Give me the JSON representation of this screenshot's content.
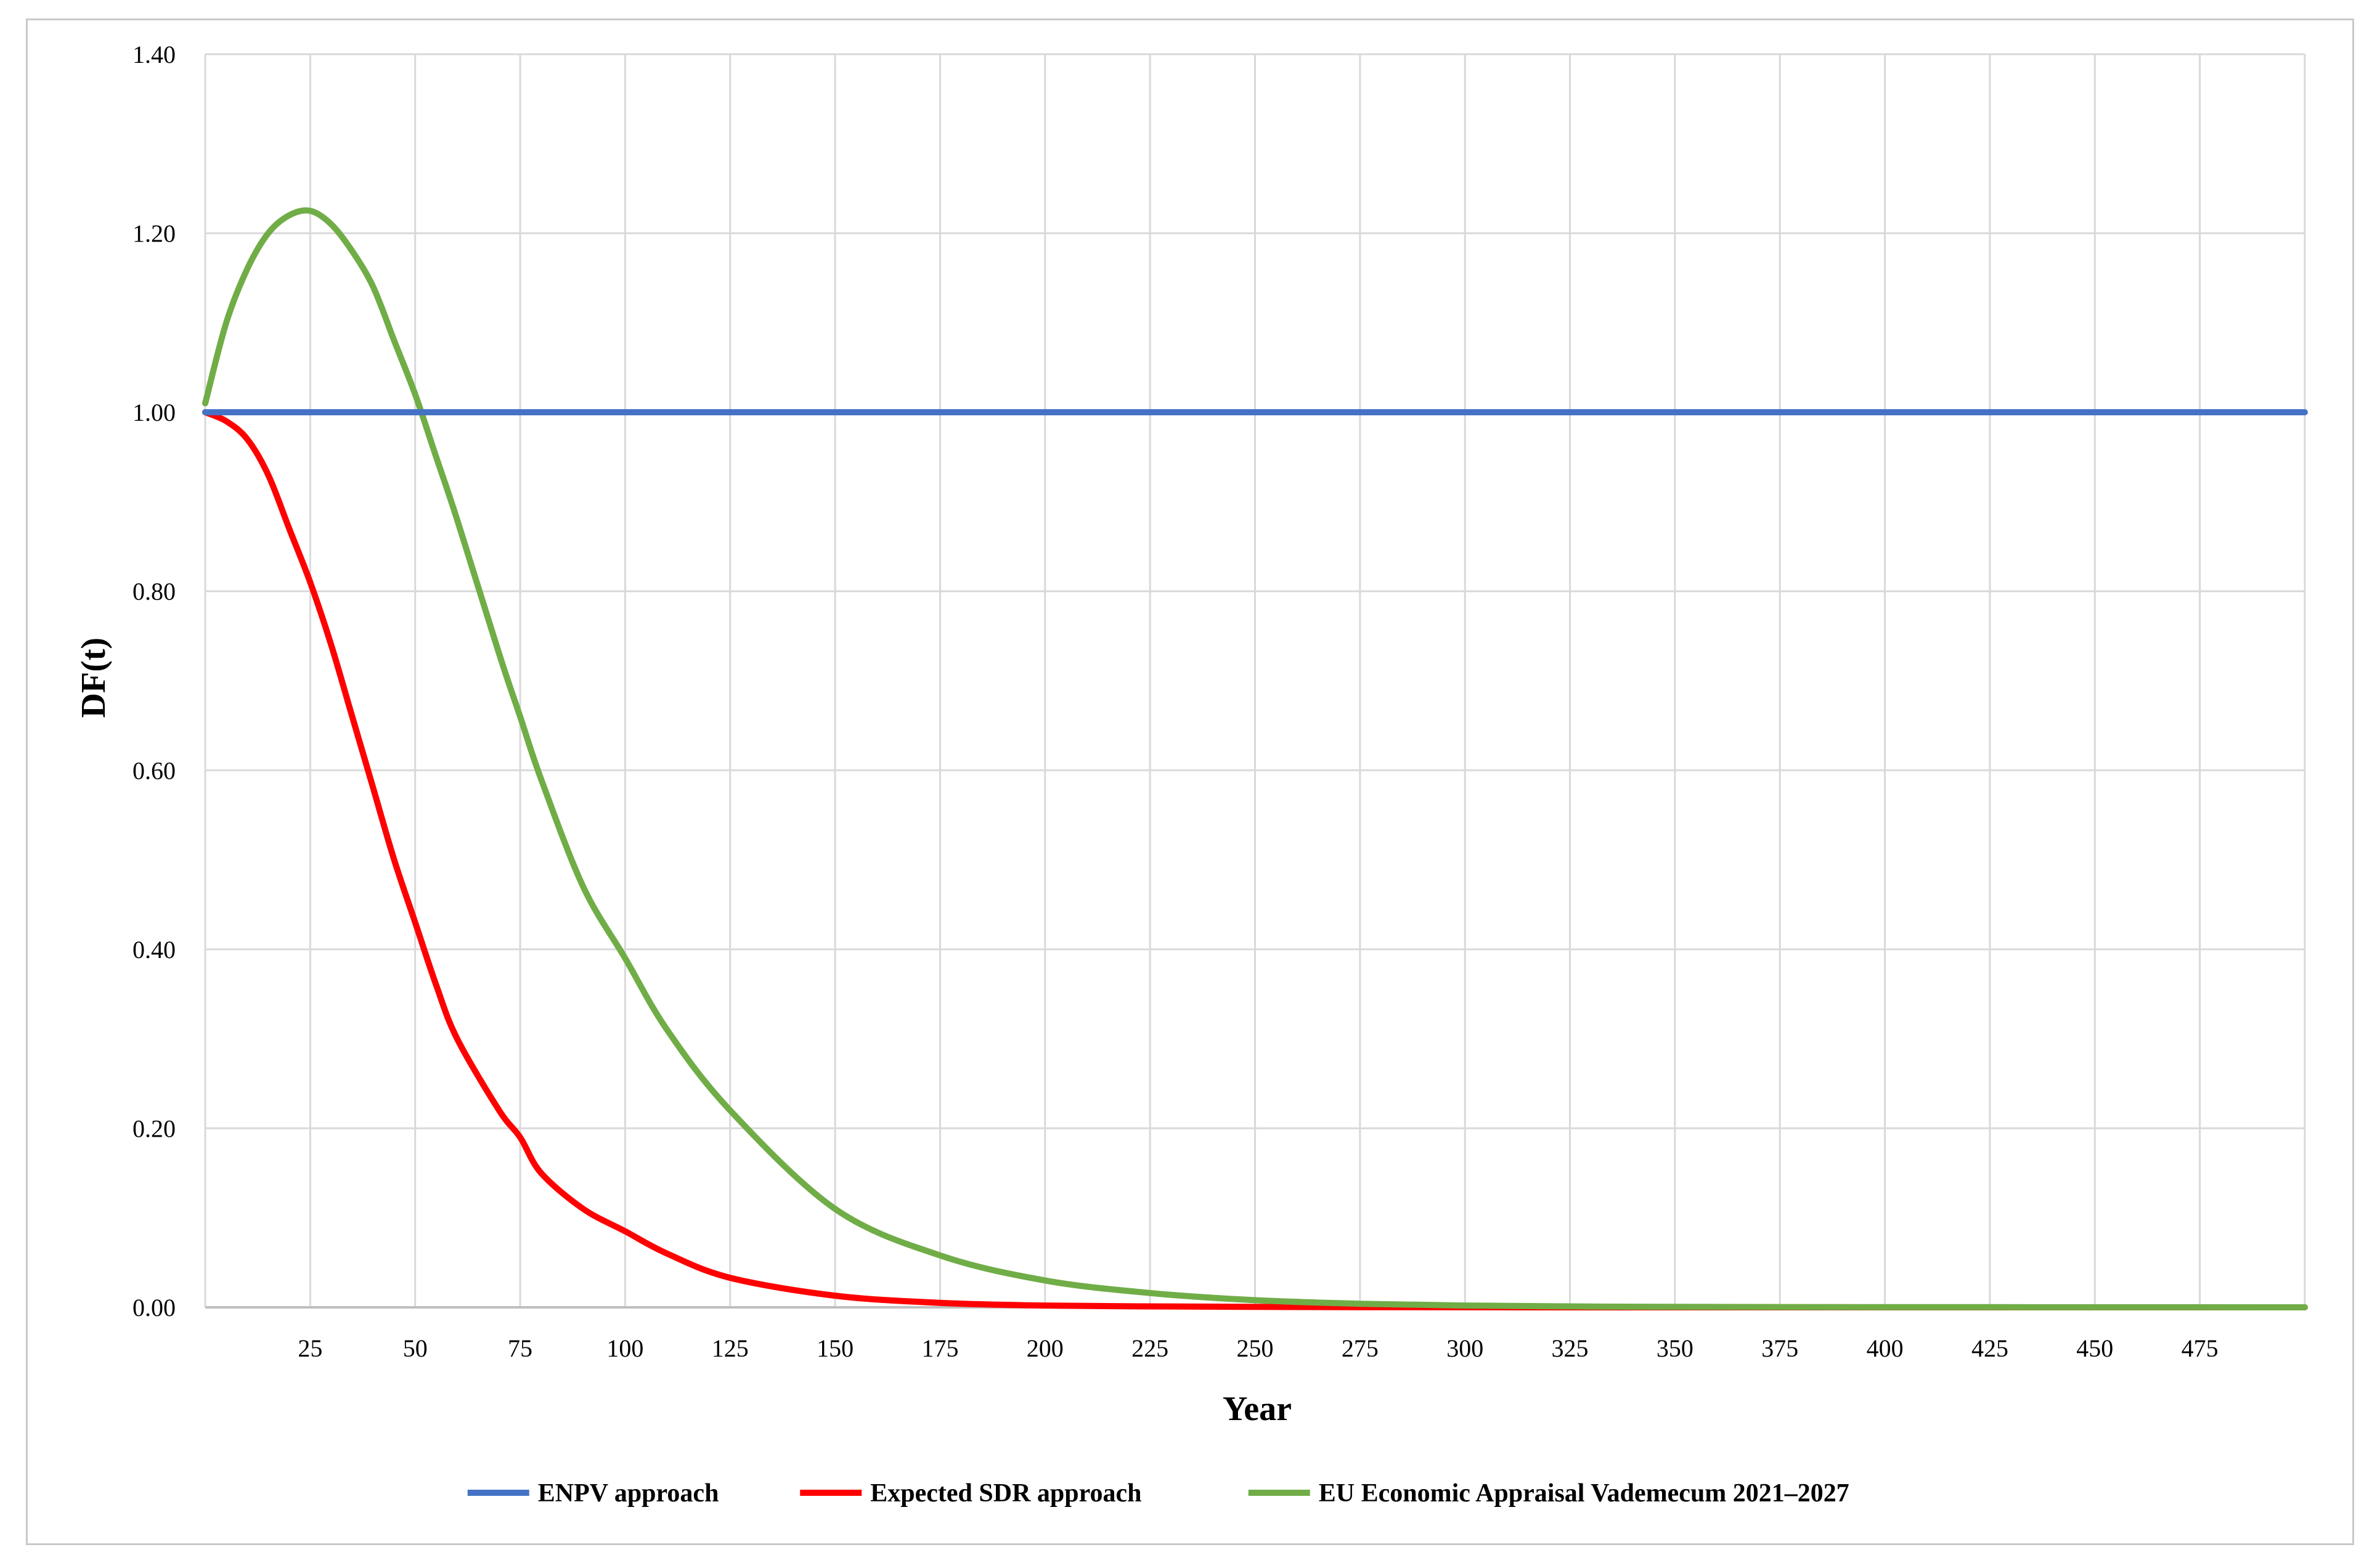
{
  "chart_data": {
    "type": "line",
    "title": "",
    "xlabel": "Year",
    "ylabel": "DF(t)",
    "xlim": [
      0,
      500
    ],
    "ylim": [
      0,
      1.4
    ],
    "x_ticks": [
      25,
      50,
      75,
      100,
      125,
      150,
      175,
      200,
      225,
      250,
      275,
      300,
      325,
      350,
      375,
      400,
      425,
      450,
      475
    ],
    "y_ticks": [
      "0.00",
      "0.20",
      "0.40",
      "0.60",
      "0.80",
      "1.00",
      "1.20",
      "1.40"
    ],
    "grid": true,
    "legend_position": "bottom",
    "x": [
      0,
      5,
      10,
      15,
      20,
      25,
      30,
      35,
      40,
      45,
      50,
      55,
      60,
      70,
      75,
      80,
      90,
      100,
      110,
      125,
      150,
      175,
      200,
      225,
      250,
      275,
      300,
      325,
      350,
      400,
      450,
      500
    ],
    "series": [
      {
        "name": "ENPV approach",
        "color": "#4472c4",
        "values": [
          1.0,
          1.0,
          1.0,
          1.0,
          1.0,
          1.0,
          1.0,
          1.0,
          1.0,
          1.0,
          1.0,
          1.0,
          1.0,
          1.0,
          1.0,
          1.0,
          1.0,
          1.0,
          1.0,
          1.0,
          1.0,
          1.0,
          1.0,
          1.0,
          1.0,
          1.0,
          1.0,
          1.0,
          1.0,
          1.0,
          1.0,
          1.0
        ]
      },
      {
        "name": "Expected SDR approach",
        "color": "#ff0000",
        "values": [
          1.0,
          0.99,
          0.97,
          0.93,
          0.87,
          0.81,
          0.74,
          0.66,
          0.58,
          0.5,
          0.43,
          0.36,
          0.3,
          0.22,
          0.19,
          0.15,
          0.11,
          0.085,
          0.06,
          0.033,
          0.013,
          0.005,
          0.002,
          0.001,
          0.0005,
          0.0002,
          0.0001,
          0.0,
          0.0,
          0.0,
          0.0,
          0.0
        ]
      },
      {
        "name": "EU Economic Appraisal Vademecum 2021–2027",
        "color": "#70ad47",
        "values": [
          1.01,
          1.1,
          1.16,
          1.2,
          1.22,
          1.225,
          1.21,
          1.18,
          1.14,
          1.08,
          1.02,
          0.95,
          0.88,
          0.73,
          0.66,
          0.59,
          0.47,
          0.39,
          0.31,
          0.22,
          0.11,
          0.058,
          0.03,
          0.016,
          0.008,
          0.004,
          0.002,
          0.001,
          0.0005,
          0.0002,
          0.0001,
          0.0
        ]
      }
    ]
  }
}
